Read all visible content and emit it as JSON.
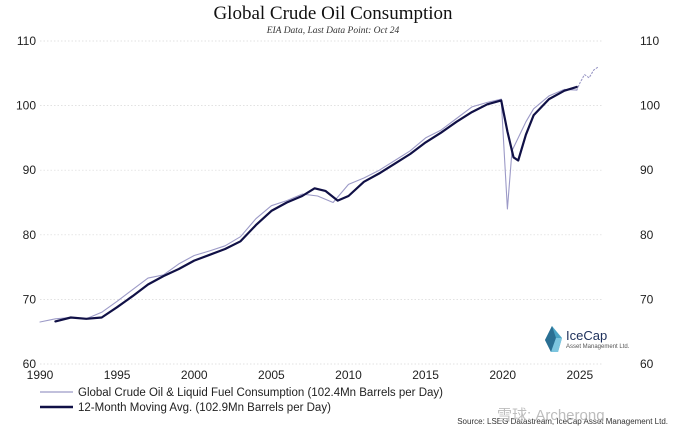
{
  "chart_data": {
    "type": "line",
    "title": "Global Crude Oil Consumption",
    "subtitle": "EIA Data, Last Data Point: Oct 24",
    "xlim": [
      1990,
      2026.5
    ],
    "ylim": [
      60,
      110
    ],
    "x_ticks": [
      1990,
      1995,
      2000,
      2005,
      2010,
      2015,
      2020,
      2025
    ],
    "y_ticks": [
      60,
      70,
      80,
      90,
      100,
      110
    ],
    "grid": true,
    "legend_position": "bottom-left",
    "series": [
      {
        "name": "Global Crude Oil & Liquid Fuel Consumption (102.4Mn Barrels per Day)",
        "style": "thin-line",
        "color": "#9c9ac7",
        "x": [
          1990.0,
          1991.0,
          1992.0,
          1993.0,
          1994.0,
          1995.0,
          1996.0,
          1997.0,
          1998.0,
          1999.0,
          2000.0,
          2001.0,
          2002.0,
          2003.0,
          2004.0,
          2005.0,
          2006.0,
          2007.0,
          2008.0,
          2009.0,
          2010.0,
          2011.0,
          2012.0,
          2013.0,
          2014.0,
          2015.0,
          2016.0,
          2017.0,
          2018.0,
          2019.0,
          2019.9,
          2020.3,
          2020.6,
          2021.0,
          2021.5,
          2022.0,
          2023.0,
          2024.0,
          2024.8
        ],
        "y": [
          66.5,
          67.0,
          67.2,
          67.0,
          68.0,
          69.7,
          71.5,
          73.3,
          73.8,
          75.5,
          76.8,
          77.5,
          78.3,
          79.7,
          82.5,
          84.5,
          85.3,
          86.3,
          86.0,
          85.0,
          87.8,
          88.8,
          90.0,
          91.5,
          93.0,
          95.0,
          96.2,
          98.0,
          99.8,
          100.5,
          101.0,
          84.0,
          93.0,
          95.0,
          97.5,
          99.5,
          101.5,
          102.5,
          102.4
        ]
      },
      {
        "name": "12-Month Moving Avg. (102.9Mn Barrels per Day)",
        "style": "thick-line",
        "color": "#101046",
        "x": [
          1991.0,
          1992.0,
          1993.0,
          1994.0,
          1995.0,
          1996.0,
          1997.0,
          1998.0,
          1999.0,
          2000.0,
          2001.0,
          2002.0,
          2003.0,
          2004.0,
          2005.0,
          2006.0,
          2007.0,
          2007.8,
          2008.5,
          2009.3,
          2010.0,
          2011.0,
          2012.0,
          2013.0,
          2014.0,
          2015.0,
          2016.0,
          2017.0,
          2018.0,
          2019.0,
          2019.9,
          2020.3,
          2020.7,
          2021.0,
          2021.5,
          2022.0,
          2023.0,
          2024.0,
          2024.8
        ],
        "y": [
          66.6,
          67.2,
          67.0,
          67.2,
          68.8,
          70.5,
          72.3,
          73.6,
          74.7,
          76.0,
          76.9,
          77.8,
          79.0,
          81.5,
          83.7,
          85.0,
          86.0,
          87.2,
          86.8,
          85.3,
          86.0,
          88.2,
          89.5,
          91.0,
          92.5,
          94.3,
          95.8,
          97.5,
          99.0,
          100.2,
          100.8,
          96.0,
          92.0,
          91.5,
          95.5,
          98.5,
          101.0,
          102.3,
          102.9
        ]
      },
      {
        "name": "",
        "style": "forecast-dotted",
        "color": "#9c9ac7",
        "x": [
          2024.8,
          2025.0,
          2025.3,
          2025.6,
          2025.9,
          2026.2
        ],
        "y": [
          102.4,
          103.5,
          104.8,
          104.3,
          105.5,
          106.0
        ]
      }
    ]
  },
  "source": "Source: LSEG Datastream, IceCap Asset Management Ltd.",
  "brand": {
    "name": "IceCap",
    "sub": "Asset Management Ltd.",
    "logo_icon": "iceberg-icon"
  },
  "watermark": "雪球: Archerong"
}
